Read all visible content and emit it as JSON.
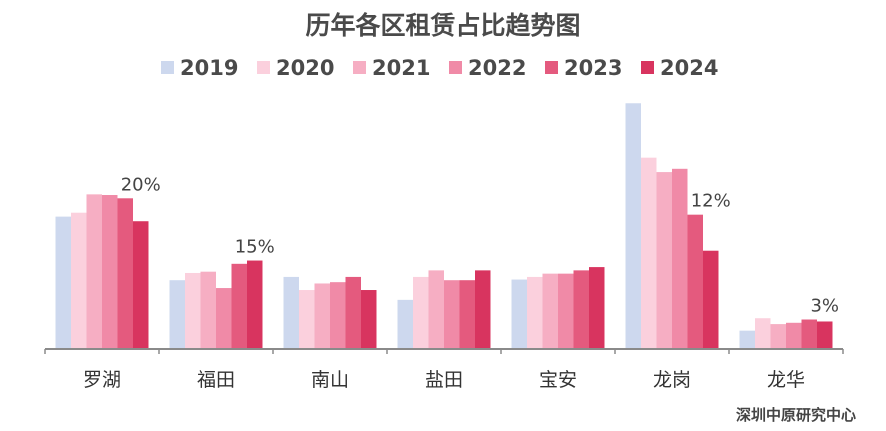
{
  "chart_data": {
    "type": "bar",
    "title": "历年各区租赁占比趋势图",
    "xlabel": "",
    "ylabel": "",
    "ylim": [
      0,
      38
    ],
    "grid": false,
    "legend_position": "top-center",
    "categories": [
      "罗湖",
      "福田",
      "南山",
      "盐田",
      "宝安",
      "龙岗",
      "龙华"
    ],
    "series": [
      {
        "name": "2019",
        "color": "#cdd8ee",
        "values": [
          20.2,
          10.5,
          11.0,
          7.5,
          10.6,
          37.5,
          2.8
        ]
      },
      {
        "name": "2020",
        "color": "#fbd0dd",
        "values": [
          20.8,
          11.6,
          9.0,
          11.0,
          11.0,
          29.2,
          4.7
        ]
      },
      {
        "name": "2021",
        "color": "#f6aec3",
        "values": [
          23.6,
          11.8,
          10.0,
          12.0,
          11.5,
          27.0,
          3.8
        ]
      },
      {
        "name": "2022",
        "color": "#f08aa7",
        "values": [
          23.5,
          9.3,
          10.2,
          10.5,
          11.5,
          27.5,
          4.0
        ]
      },
      {
        "name": "2023",
        "color": "#e45a7e",
        "values": [
          23.0,
          13.0,
          11.0,
          10.5,
          12.0,
          20.5,
          4.5
        ]
      },
      {
        "name": "2024",
        "color": "#d8345f",
        "values": [
          19.5,
          13.5,
          9.0,
          12.0,
          12.5,
          15.0,
          4.2
        ]
      }
    ],
    "annotations": [
      {
        "category": "罗湖",
        "text": "20%"
      },
      {
        "category": "福田",
        "text": "15%"
      },
      {
        "category": "龙岗",
        "text": "12%"
      },
      {
        "category": "龙华",
        "text": "3%"
      }
    ]
  },
  "source": "深圳中原研究中心"
}
